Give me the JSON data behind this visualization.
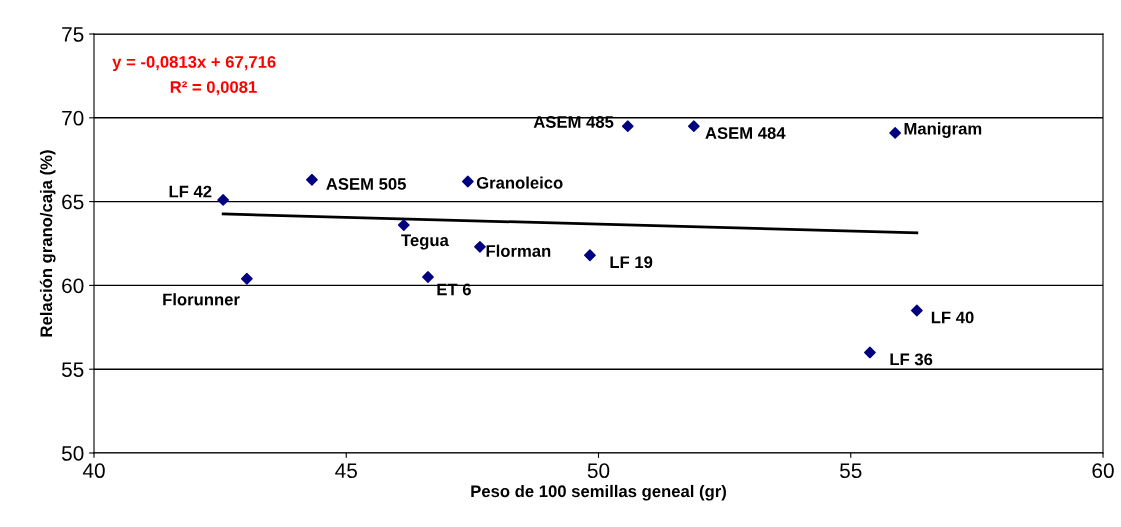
{
  "chart_data": {
    "type": "scatter",
    "xlabel": "Peso de 100 semillas geneal (gr)",
    "ylabel": "Relación grano/caja (%)",
    "xlim": [
      40,
      60
    ],
    "xticks": [
      40,
      45,
      50,
      55,
      60
    ],
    "ylim": [
      50,
      75
    ],
    "yticks": [
      50,
      55,
      60,
      65,
      70,
      75
    ],
    "grid": "y",
    "marker": "diamond",
    "series": [
      {
        "color": "#000080",
        "x": [
          42.56,
          43.03,
          44.32,
          47.41,
          46.14,
          47.65,
          46.62,
          49.83,
          50.58,
          51.89,
          55.88,
          56.31,
          55.38
        ],
        "values": [
          65.1,
          60.4,
          66.3,
          66.2,
          63.6,
          62.3,
          60.5,
          61.8,
          69.5,
          69.5,
          69.1,
          58.5,
          56.0
        ]
      },
      {
        "type": "line",
        "marker": "none",
        "color": "#000000",
        "x": [
          42.56,
          56.31
        ],
        "values": [
          64.26,
          63.14
        ]
      }
    ],
    "annotations": [
      {
        "text": "LF 42",
        "x": 42.56,
        "y": 65.1
      },
      {
        "text": "Florunner",
        "x": 43.03,
        "y": 60.4
      },
      {
        "text": "ASEM 505",
        "x": 44.32,
        "y": 66.3
      },
      {
        "text": "Granoleico",
        "x": 47.41,
        "y": 66.2
      },
      {
        "text": "Tegua",
        "x": 46.14,
        "y": 63.6
      },
      {
        "text": "Florman",
        "x": 47.65,
        "y": 62.3
      },
      {
        "text": "ET 6",
        "x": 46.62,
        "y": 60.5
      },
      {
        "text": "LF 19",
        "x": 49.83,
        "y": 61.8
      },
      {
        "text": "ASEM 485",
        "x": 50.58,
        "y": 69.5
      },
      {
        "text": "ASEM 484",
        "x": 51.89,
        "y": 69.5
      },
      {
        "text": "Manigram",
        "x": 55.88,
        "y": 69.1
      },
      {
        "text": "LF 40",
        "x": 56.31,
        "y": 58.5
      },
      {
        "text": "LF 36",
        "x": 55.38,
        "y": 56.0
      },
      "y = -0,0813x + 67,716",
      "R² = 0,0081"
    ]
  }
}
